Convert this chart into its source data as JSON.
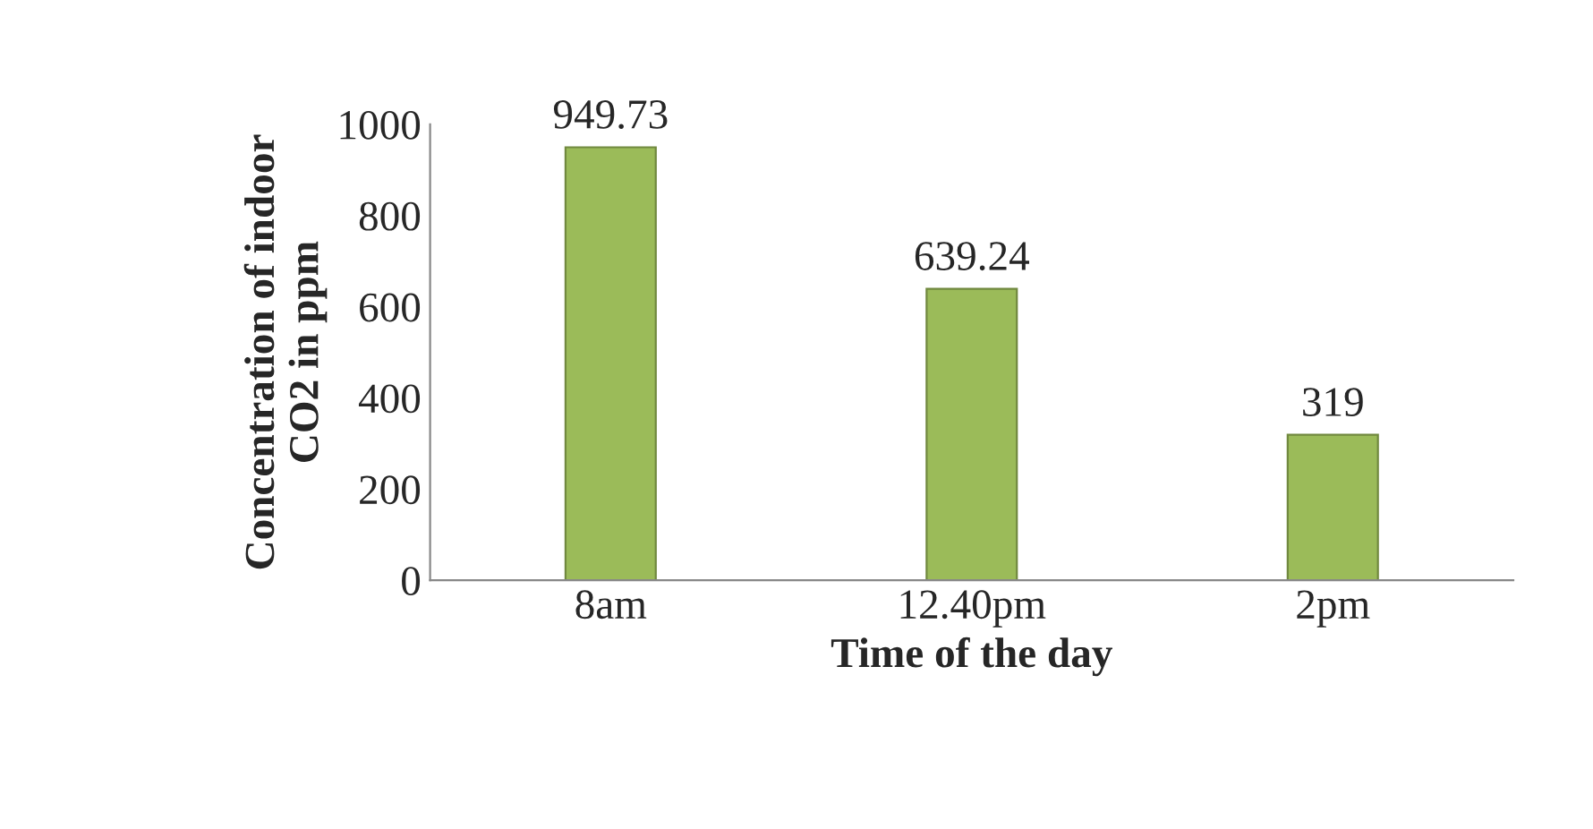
{
  "chart_data": {
    "type": "bar",
    "xlabel": "Time of the day",
    "ylabel": "Concentration of indoor\nCO2 in ppm",
    "categories": [
      "8am",
      "12.40pm",
      "2pm"
    ],
    "values": [
      949.73,
      639.24,
      319
    ],
    "color": "#9bbb59",
    "value_labels": [
      "949.73",
      "639.24",
      "319"
    ],
    "ylim": [
      0,
      1000
    ],
    "yticks": [
      0,
      200,
      400,
      600,
      800,
      1000
    ],
    "grid": false,
    "legend": false
  }
}
